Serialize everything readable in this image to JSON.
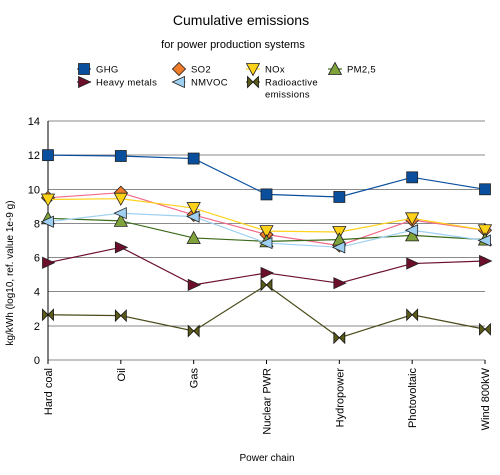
{
  "chart_data": {
    "type": "line",
    "title": "Cumulative emissions",
    "subtitle": "for power production systems",
    "xlabel": "Power chain",
    "ylabel": "kg/kWh (log10, ref. value 1e-9 g)",
    "ylim": [
      0,
      14
    ],
    "yticks": [
      0,
      2,
      4,
      6,
      8,
      10,
      12,
      14
    ],
    "grid": "horizontal",
    "legend_position": "top",
    "categories": [
      "Hard coal",
      "Oil",
      "Gas",
      "Nuclear PWR",
      "Hydropower",
      "Photovoltaic",
      "Wind 800kW"
    ],
    "series": [
      {
        "name": "GHG",
        "marker": "square",
        "color": "#0a4f9e",
        "line_color": "#0a4f9e",
        "values": [
          12.0,
          11.95,
          11.8,
          9.7,
          9.55,
          10.7,
          10.0
        ]
      },
      {
        "name": "SO2",
        "marker": "diamond",
        "color": "#f07c2a",
        "line_color": "#f26b8a",
        "values": [
          9.5,
          9.8,
          8.5,
          7.35,
          6.7,
          8.2,
          7.6
        ]
      },
      {
        "name": "NOx",
        "marker": "triangle-down",
        "color": "#ffd21a",
        "line_color": "#ffd21a",
        "values": [
          9.4,
          9.45,
          8.9,
          7.55,
          7.5,
          8.3,
          7.6
        ]
      },
      {
        "name": "PM2,5",
        "marker": "triangle-up",
        "color": "#7fa23a",
        "line_color": "#3a6a1a",
        "values": [
          8.3,
          8.15,
          7.15,
          6.95,
          7.05,
          7.3,
          7.05
        ]
      },
      {
        "name": "Heavy metals",
        "marker": "triangle-right",
        "color": "#6b0f2b",
        "line_color": "#6b0f2b",
        "values": [
          5.7,
          6.6,
          4.4,
          5.1,
          4.5,
          5.65,
          5.8
        ]
      },
      {
        "name": "NMVOC",
        "marker": "triangle-left",
        "color": "#9fd0f2",
        "line_color": "#9fd0f2",
        "values": [
          8.1,
          8.6,
          8.4,
          6.85,
          6.6,
          7.6,
          7.0
        ]
      },
      {
        "name": "Radioactive emissions",
        "marker": "bowtie",
        "color": "#5a5a1a",
        "line_color": "#4a4a1a",
        "values": [
          2.65,
          2.6,
          1.7,
          4.4,
          1.3,
          2.65,
          1.8
        ]
      }
    ]
  },
  "legend_layout": [
    [
      {
        "series": 0,
        "lines": [
          "GHG"
        ]
      },
      {
        "series": 1,
        "lines": [
          "SO2"
        ]
      },
      {
        "series": 2,
        "lines": [
          "NOx"
        ]
      },
      {
        "series": 3,
        "lines": [
          "PM2,5"
        ]
      }
    ],
    [
      {
        "series": 4,
        "lines": [
          "Heavy metals"
        ]
      },
      {
        "series": 5,
        "lines": [
          "NMVOC"
        ]
      },
      {
        "series": 6,
        "lines": [
          "Radioactive",
          "emissions"
        ]
      }
    ]
  ]
}
